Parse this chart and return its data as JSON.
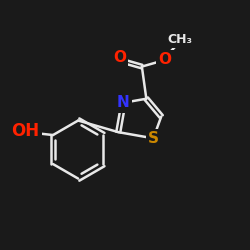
{
  "background_color": "#1a1a1a",
  "bond_color": "#e8e8e8",
  "atom_colors": {
    "N": "#3333ff",
    "O": "#ff2200",
    "S": "#cc8800",
    "C": "#e8e8e8"
  },
  "bond_lw": 1.8,
  "font_size_atom": 11,
  "xlim": [
    -2.8,
    2.8
  ],
  "ylim": [
    -2.2,
    1.8
  ]
}
